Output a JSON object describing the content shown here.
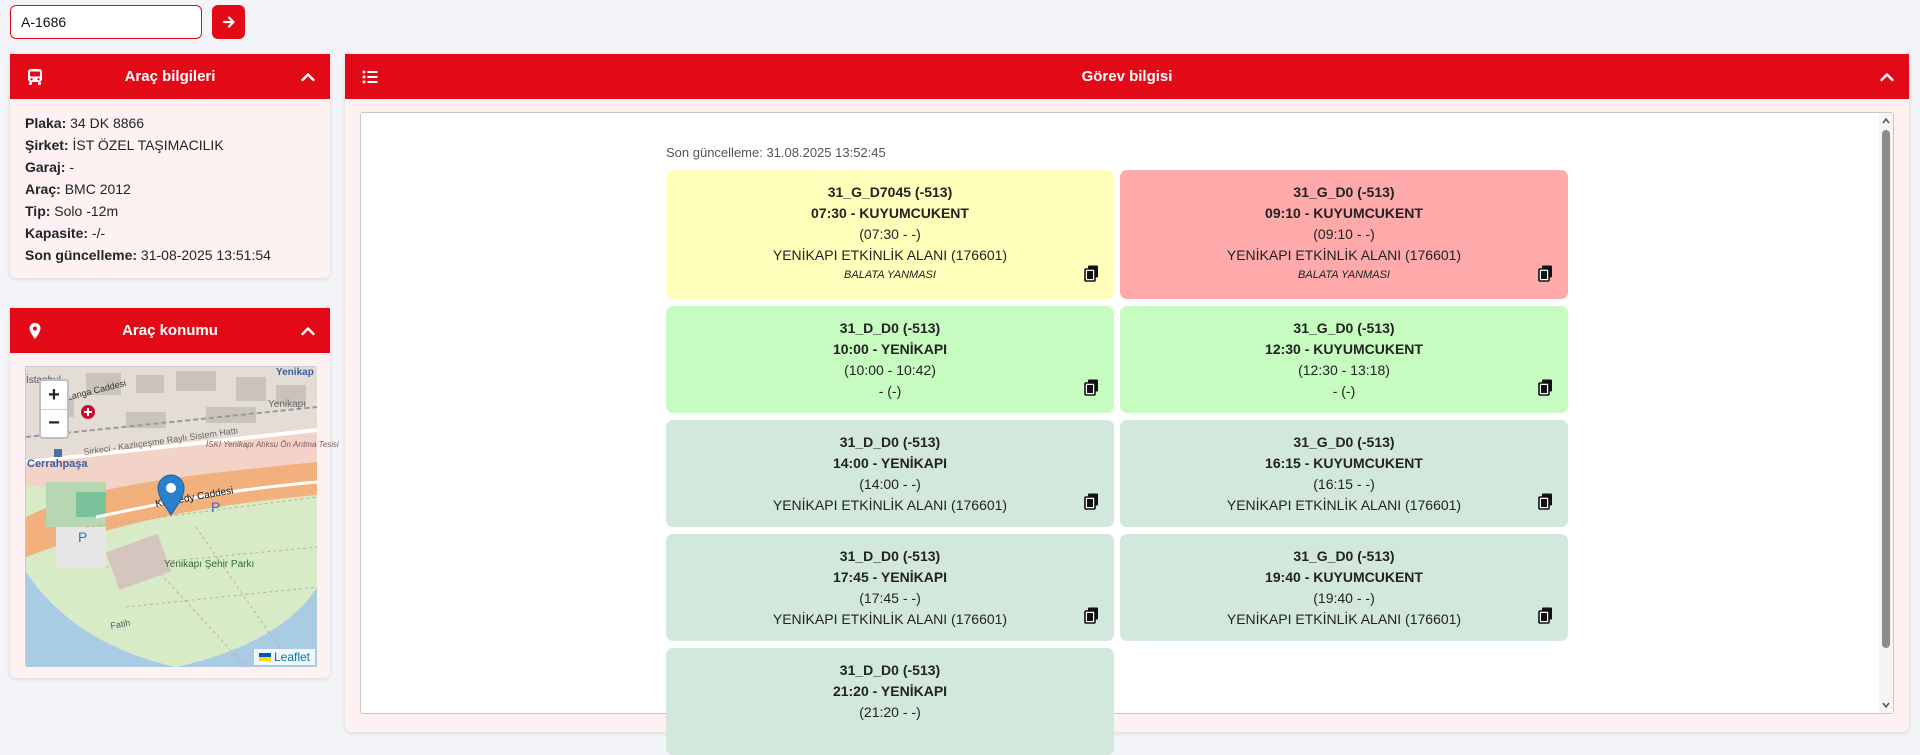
{
  "search": {
    "value": "A-1686"
  },
  "info_panel": {
    "title": "Araç bilgileri",
    "rows": [
      {
        "label": "Plaka:",
        "value": "34 DK 8866"
      },
      {
        "label": "Şirket:",
        "value": "İST ÖZEL TAŞIMACILIK"
      },
      {
        "label": "Garaj:",
        "value": "-"
      },
      {
        "label": "Araç:",
        "value": "BMC 2012"
      },
      {
        "label": "Tip:",
        "value": "Solo -12m"
      },
      {
        "label": "Kapasite:",
        "value": "-/-"
      },
      {
        "label": "Son güncelleme:",
        "value": "31-08-2025 13:51:54"
      }
    ]
  },
  "map_panel": {
    "title": "Araç konumu",
    "labels": {
      "yenikapi_top": "Yenikap",
      "istanbul": "İstanbul",
      "yenikapi_right": "Yenikapı",
      "kucuk_langa": "Küçük Langa Caddesi",
      "sirkeci": "Sirkeci - Kazlıçeşme Raylı Sistem Hattı",
      "iski": "İSKİ Yenikapı Atıksu Ön Arıtma Tesisi",
      "cerrahpasa": "Cerrahpaşa",
      "kennedy": "Kennedy Caddesi",
      "park": "Yenikapı Şehir Parkı",
      "fatih": "Fatih",
      "p": "P"
    },
    "attribution": "Leaflet"
  },
  "task_panel": {
    "title": "Görev bilgisi",
    "last_update": "Son güncelleme: 31.08.2025 13:52:45",
    "cards": [
      {
        "trip": "31_G_D7045 (-513)",
        "dep": "07:30 - KUYUMCUKENT",
        "time": "(07:30 - -)",
        "stop": "YENİKAPI ETKİNLİK ALANI (176601)",
        "note": "BALATA YANMASI",
        "status": "yellow"
      },
      {
        "trip": "31_G_D0 (-513)",
        "dep": "09:10 - KUYUMCUKENT",
        "time": "(09:10 - -)",
        "stop": "YENİKAPI ETKİNLİK ALANI (176601)",
        "note": "BALATA YANMASI",
        "status": "red"
      },
      {
        "trip": "31_D_D0 (-513)",
        "dep": "10:00 - YENİKAPI",
        "time": "(10:00 - 10:42)",
        "stop": "- (-)",
        "note": "",
        "status": "green"
      },
      {
        "trip": "31_G_D0 (-513)",
        "dep": "12:30 - KUYUMCUKENT",
        "time": "(12:30 - 13:18)",
        "stop": "- (-)",
        "note": "",
        "status": "green"
      },
      {
        "trip": "31_D_D0 (-513)",
        "dep": "14:00 - YENİKAPI",
        "time": "(14:00 - -)",
        "stop": "YENİKAPI ETKİNLİK ALANI (176601)",
        "note": "",
        "status": "gray"
      },
      {
        "trip": "31_G_D0 (-513)",
        "dep": "16:15 - KUYUMCUKENT",
        "time": "(16:15 - -)",
        "stop": "YENİKAPI ETKİNLİK ALANI (176601)",
        "note": "",
        "status": "gray"
      },
      {
        "trip": "31_D_D0 (-513)",
        "dep": "17:45 - YENİKAPI",
        "time": "(17:45 - -)",
        "stop": "YENİKAPI ETKİNLİK ALANI (176601)",
        "note": "",
        "status": "gray"
      },
      {
        "trip": "31_G_D0 (-513)",
        "dep": "19:40 - KUYUMCUKENT",
        "time": "(19:40 - -)",
        "stop": "YENİKAPI ETKİNLİK ALANI (176601)",
        "note": "",
        "status": "gray"
      },
      {
        "trip": "31_D_D0 (-513)",
        "dep": "21:20 - YENİKAPI",
        "time": "(21:20 - -)",
        "stop": "",
        "note": "",
        "status": "gray"
      }
    ]
  },
  "colors": {
    "accent": "#e30a17",
    "yellow": "#ffffbb",
    "red": "#ffaaaa",
    "green": "#c6fcc0",
    "gray": "#d3e8dc"
  },
  "icons": {
    "bus": "bus-icon",
    "pin": "map-pin-icon",
    "list": "list-icon",
    "chevron": "chevron-up-icon",
    "arrow": "arrow-right-icon",
    "copy": "copy-icon"
  }
}
